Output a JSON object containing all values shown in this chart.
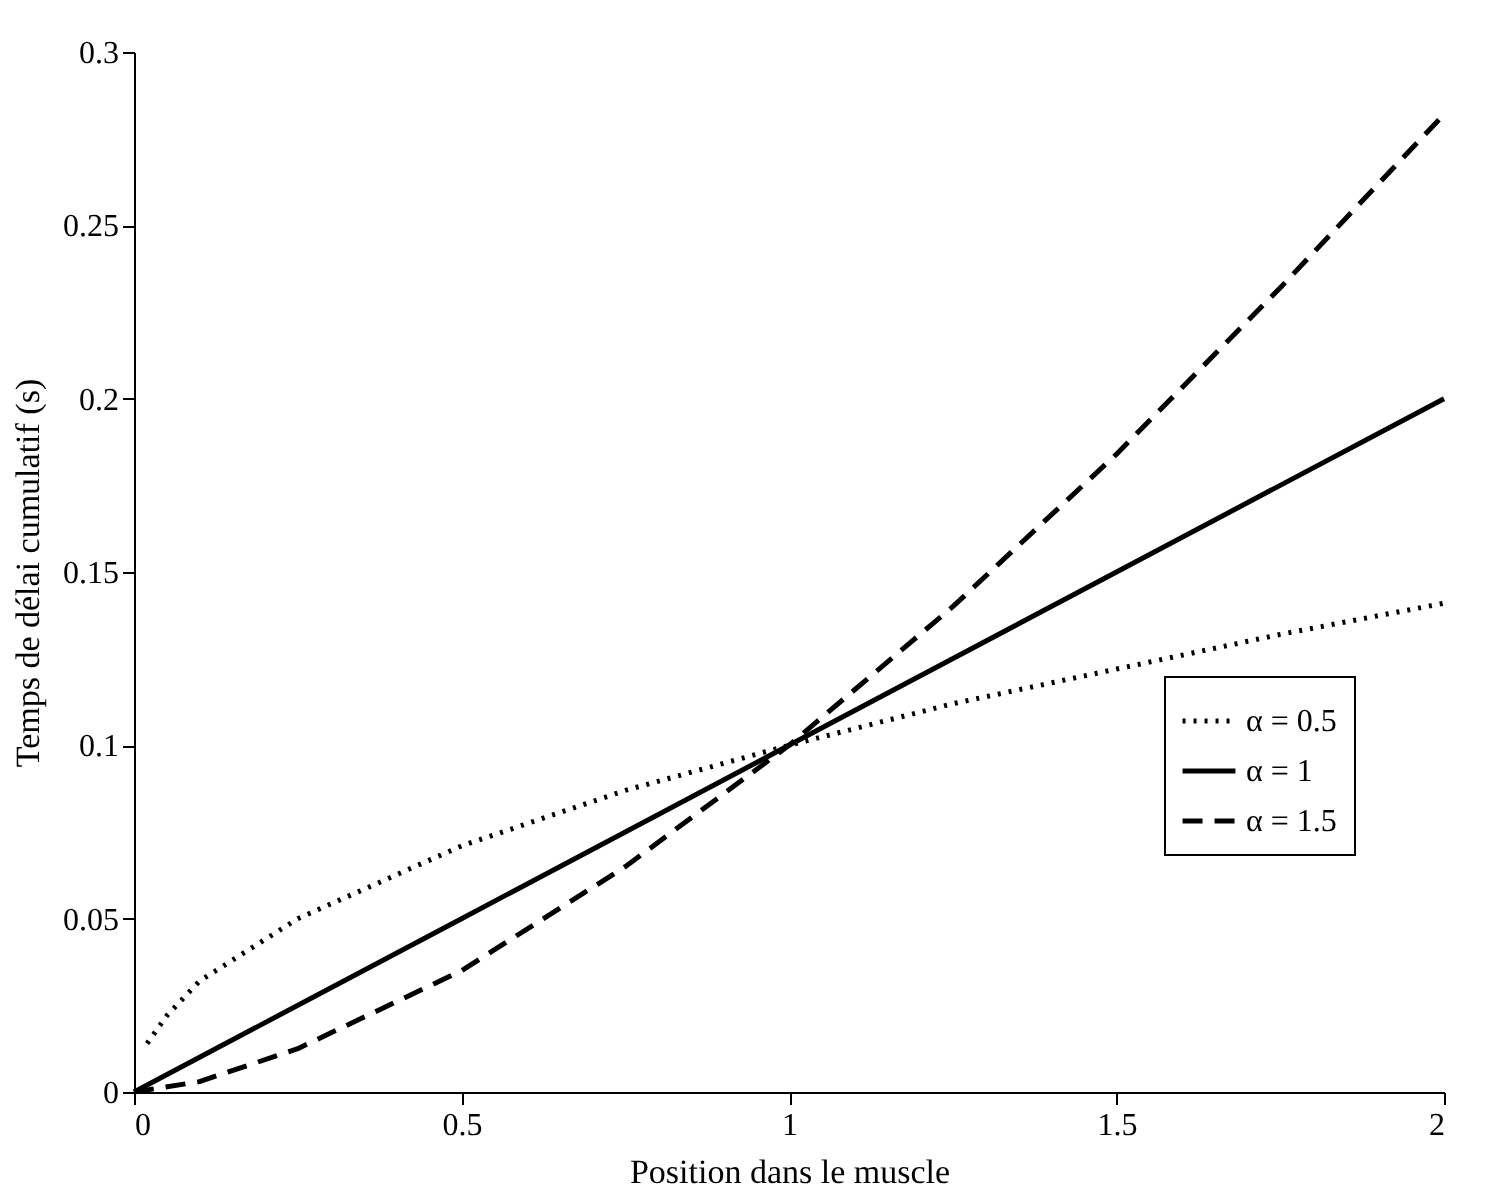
{
  "chart_data": {
    "type": "line",
    "xlabel": "Position dans le muscle",
    "ylabel": "Temps de délai cumulatif (s)",
    "xlim": [
      0,
      2
    ],
    "xticks": [
      0,
      0.5,
      1,
      1.5,
      2
    ],
    "ylim": [
      0,
      0.3
    ],
    "yticks": [
      0,
      0.05,
      0.1,
      0.15,
      0.2,
      0.25,
      0.3
    ],
    "grid": false,
    "legend": "right",
    "marker": "none",
    "series": [
      {
        "name": "α = 0.5",
        "color": "#000000",
        "line_style": "dotted",
        "x": [
          0.02,
          0.05,
          0.1,
          0.25,
          0.5,
          0.75,
          1,
          1.25,
          1.5,
          1.75,
          2
        ],
        "values": [
          0.014,
          0.022,
          0.032,
          0.05,
          0.071,
          0.087,
          0.1,
          0.112,
          0.122,
          0.132,
          0.141
        ]
      },
      {
        "name": "α = 1",
        "color": "#000000",
        "line_style": "solid",
        "x": [
          0,
          0.5,
          1,
          1.5,
          2
        ],
        "values": [
          0,
          0.05,
          0.1,
          0.15,
          0.2
        ]
      },
      {
        "name": "α = 1.5",
        "color": "#000000",
        "line_style": "dashed",
        "x": [
          0,
          0.1,
          0.25,
          0.5,
          0.75,
          1,
          1.25,
          1.5,
          1.75,
          2
        ],
        "values": [
          0,
          0.003,
          0.0125,
          0.035,
          0.065,
          0.1,
          0.14,
          0.184,
          0.232,
          0.282
        ]
      }
    ]
  }
}
